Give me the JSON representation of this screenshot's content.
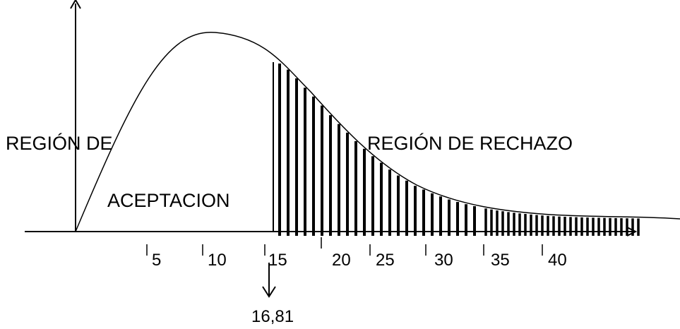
{
  "labels": {
    "acceptance_line1": "REGIÓN DE",
    "acceptance_line2": "ACEPTACION",
    "rejection": "REGIÓN DE RECHAZO",
    "critical_value": "16,81"
  },
  "x_ticks": [
    "5",
    "10",
    "15",
    "20",
    "25",
    "30",
    "35",
    "40"
  ],
  "colors": {
    "stroke": "#000000",
    "background": "#ffffff"
  }
}
